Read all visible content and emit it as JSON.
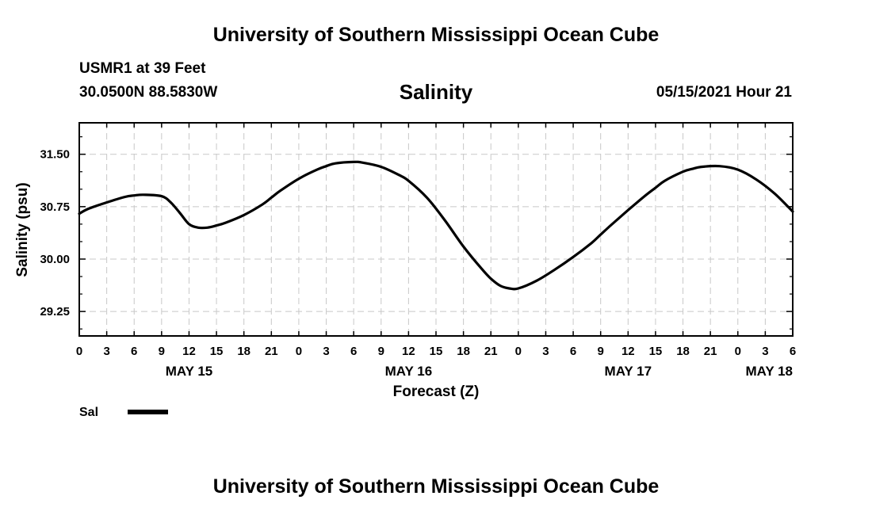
{
  "header": {
    "title": "University of Southern Mississippi Ocean Cube",
    "station": "USMR1 at 39 Feet",
    "coords": "30.0500N  88.5830W",
    "datetime": "05/15/2021 Hour 21",
    "footer_title": "University of Southern Mississippi Ocean Cube"
  },
  "chart_data": {
    "type": "line",
    "title": "Salinity",
    "xlabel": "Forecast (Z)",
    "ylabel": "Salinity (psu)",
    "x_unit": "hours from 00Z May 15",
    "xlim": [
      0,
      78
    ],
    "ylim": [
      28.9,
      31.95
    ],
    "yticks": [
      "29.25",
      "30.00",
      "30.75",
      "31.50"
    ],
    "ytick_values": [
      29.25,
      30.0,
      30.75,
      31.5
    ],
    "xtick_labels": [
      "0",
      "3",
      "6",
      "9",
      "12",
      "15",
      "18",
      "21",
      "0",
      "3",
      "6",
      "9",
      "12",
      "15",
      "18",
      "21",
      "0",
      "3",
      "6",
      "9",
      "12",
      "15",
      "18",
      "21",
      "0",
      "3",
      "6"
    ],
    "date_labels": [
      {
        "label": "MAY 15",
        "hour": 12
      },
      {
        "label": "MAY 16",
        "hour": 36
      },
      {
        "label": "MAY 17",
        "hour": 60
      },
      {
        "label": "MAY 18",
        "hour": 78
      }
    ],
    "grid": true,
    "legend": [
      {
        "name": "Sal",
        "color": "#000000"
      }
    ],
    "series": [
      {
        "name": "Sal",
        "color": "#000000",
        "x": [
          0,
          1,
          3,
          5,
          6,
          7,
          9,
          10,
          11,
          12,
          13,
          14,
          15,
          16,
          18,
          20,
          21,
          22,
          24,
          26,
          27,
          28,
          30,
          31,
          33,
          35,
          36,
          38,
          40,
          42,
          44,
          45,
          46,
          47,
          48,
          50,
          52,
          54,
          56,
          57,
          58,
          60,
          62,
          63,
          64,
          66,
          67,
          68,
          70,
          72,
          74,
          76,
          78
        ],
        "values": [
          30.65,
          30.72,
          30.81,
          30.89,
          30.91,
          30.92,
          30.9,
          30.81,
          30.66,
          30.5,
          30.45,
          30.45,
          30.48,
          30.52,
          30.63,
          30.78,
          30.88,
          30.98,
          31.15,
          31.28,
          31.33,
          31.37,
          31.39,
          31.38,
          31.32,
          31.2,
          31.12,
          30.88,
          30.55,
          30.18,
          29.86,
          29.72,
          29.62,
          29.58,
          29.58,
          29.69,
          29.85,
          30.03,
          30.23,
          30.35,
          30.47,
          30.7,
          30.92,
          31.02,
          31.12,
          31.25,
          31.29,
          31.32,
          31.33,
          31.28,
          31.14,
          30.94,
          30.68
        ]
      }
    ]
  }
}
